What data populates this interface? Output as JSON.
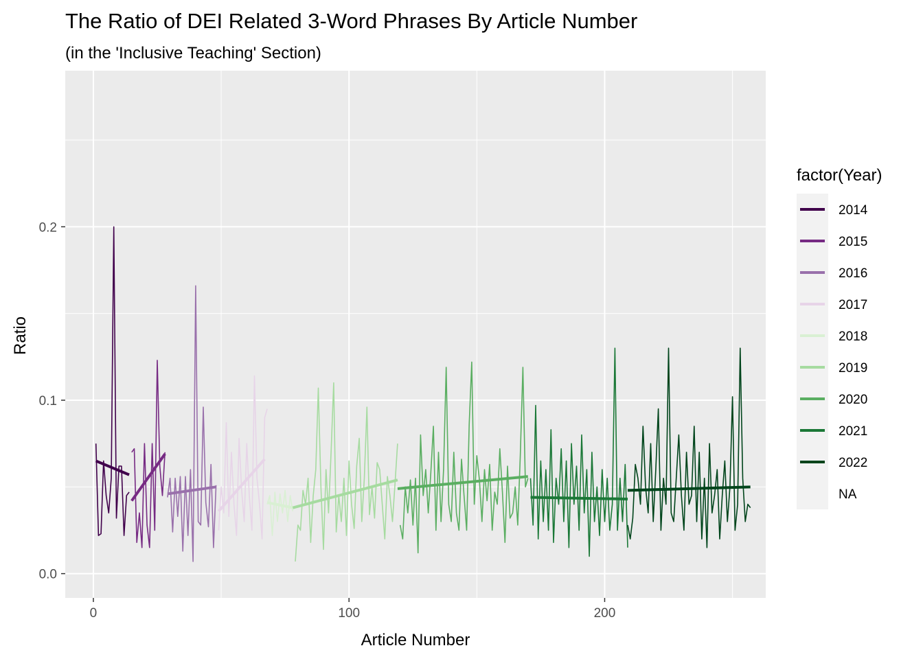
{
  "chart_data": {
    "type": "line",
    "title": "The Ratio of DEI Related 3-Word Phrases By Article Number",
    "subtitle": "(in the 'Inclusive Teaching' Section)",
    "xlabel": "Article Number",
    "ylabel": "Ratio",
    "xlim": [
      -11,
      263
    ],
    "ylim": [
      -0.014,
      0.29
    ],
    "x_ticks": [
      0,
      100,
      200
    ],
    "x_tick_labels": [
      "0",
      "100",
      "200"
    ],
    "y_ticks": [
      0.0,
      0.1,
      0.2
    ],
    "y_tick_labels": [
      "0.0",
      "0.1",
      "0.2"
    ],
    "grid": true,
    "panel_background": "#ebebeb",
    "legend": {
      "title": "factor(Year)",
      "placement": "right",
      "entries": [
        {
          "label": "2014",
          "color": "#40004b"
        },
        {
          "label": "2015",
          "color": "#762a83"
        },
        {
          "label": "2016",
          "color": "#9970ab"
        },
        {
          "label": "2017",
          "color": "#e7d4e8"
        },
        {
          "label": "2018",
          "color": "#d9f0d3"
        },
        {
          "label": "2019",
          "color": "#a6dba0"
        },
        {
          "label": "2020",
          "color": "#5aae61"
        },
        {
          "label": "2021",
          "color": "#1b7837"
        },
        {
          "label": "2022",
          "color": "#00441b"
        },
        {
          "label": "NA",
          "color": null
        }
      ]
    },
    "series": [
      {
        "name": "2014",
        "color": "#40004b",
        "x": [
          1,
          2,
          3,
          4,
          5,
          6,
          7,
          8,
          9,
          10,
          11,
          12,
          13,
          14
        ],
        "y": [
          0.075,
          0.022,
          0.023,
          0.065,
          0.045,
          0.035,
          0.055,
          0.2,
          0.032,
          0.062,
          0.062,
          0.022,
          0.045,
          0.047
        ],
        "trend": [
          [
            1,
            0.065
          ],
          [
            14,
            0.057
          ]
        ]
      },
      {
        "name": "2015",
        "color": "#762a83",
        "x": [
          15,
          16,
          17,
          18,
          19,
          20,
          21,
          22,
          23,
          24,
          25,
          26,
          27,
          28
        ],
        "y": [
          0.07,
          0.072,
          0.018,
          0.035,
          0.015,
          0.075,
          0.028,
          0.015,
          0.075,
          0.025,
          0.123,
          0.062,
          0.045,
          0.07
        ],
        "trend": [
          [
            15,
            0.042
          ],
          [
            28,
            0.069
          ]
        ]
      },
      {
        "name": "2016",
        "color": "#9970ab",
        "x": [
          29,
          30,
          31,
          32,
          33,
          34,
          35,
          36,
          37,
          38,
          39,
          40,
          41,
          42,
          43,
          44,
          45,
          46,
          47,
          48
        ],
        "y": [
          0.044,
          0.055,
          0.024,
          0.055,
          0.033,
          0.056,
          0.013,
          0.056,
          0.022,
          0.06,
          0.007,
          0.166,
          0.03,
          0.028,
          0.096,
          0.041,
          0.027,
          0.063,
          0.015,
          0.051
        ],
        "trend": [
          [
            29,
            0.046
          ],
          [
            48,
            0.05
          ]
        ]
      },
      {
        "name": "2017",
        "color": "#e7d4e8",
        "x": [
          49,
          50,
          51,
          52,
          53,
          54,
          55,
          56,
          57,
          58,
          59,
          60,
          61,
          62,
          63,
          64,
          65,
          66,
          67,
          68
        ],
        "y": [
          0.025,
          0.05,
          0.035,
          0.087,
          0.033,
          0.07,
          0.04,
          0.022,
          0.078,
          0.048,
          0.03,
          0.075,
          0.045,
          0.025,
          0.114,
          0.055,
          0.04,
          0.02,
          0.09,
          0.095
        ],
        "trend": [
          [
            49,
            0.036
          ],
          [
            67,
            0.066
          ]
        ]
      },
      {
        "name": "2018",
        "color": "#d9f0d3",
        "x": [
          68,
          69,
          70,
          71,
          72,
          73,
          74,
          75,
          76,
          77,
          78
        ],
        "y": [
          0.04,
          0.045,
          0.022,
          0.047,
          0.03,
          0.046,
          0.035,
          0.048,
          0.03,
          0.045,
          0.036
        ],
        "trend": [
          [
            68,
            0.041
          ],
          [
            78,
            0.038
          ]
        ]
      },
      {
        "name": "2019",
        "color": "#a6dba0",
        "x": [
          79,
          80,
          81,
          82,
          83,
          84,
          85,
          86,
          87,
          88,
          89,
          90,
          91,
          92,
          93,
          94,
          95,
          96,
          97,
          98,
          99,
          100,
          101,
          102,
          103,
          104,
          105,
          106,
          107,
          108,
          109,
          110,
          111,
          112,
          113,
          114,
          115,
          116,
          117,
          118,
          119
        ],
        "y": [
          0.007,
          0.028,
          0.025,
          0.048,
          0.04,
          0.055,
          0.018,
          0.045,
          0.06,
          0.107,
          0.05,
          0.014,
          0.06,
          0.035,
          0.071,
          0.11,
          0.024,
          0.045,
          0.03,
          0.055,
          0.022,
          0.065,
          0.04,
          0.026,
          0.062,
          0.078,
          0.03,
          0.055,
          0.096,
          0.034,
          0.05,
          0.032,
          0.064,
          0.06,
          0.04,
          0.02,
          0.056,
          0.045,
          0.03,
          0.052,
          0.075
        ],
        "trend": [
          [
            78,
            0.038
          ],
          [
            119,
            0.054
          ]
        ]
      },
      {
        "name": "2020",
        "color": "#5aae61",
        "x": [
          120,
          121,
          122,
          123,
          124,
          125,
          126,
          127,
          128,
          129,
          130,
          131,
          132,
          133,
          134,
          135,
          136,
          137,
          138,
          139,
          140,
          141,
          142,
          143,
          144,
          145,
          146,
          147,
          148,
          149,
          150,
          151,
          152,
          153,
          154,
          155,
          156,
          157,
          158,
          159,
          160,
          161,
          162,
          163,
          164,
          165,
          166,
          167,
          168,
          169,
          170
        ],
        "y": [
          0.028,
          0.02,
          0.05,
          0.035,
          0.054,
          0.028,
          0.055,
          0.012,
          0.08,
          0.045,
          0.06,
          0.035,
          0.058,
          0.085,
          0.025,
          0.07,
          0.03,
          0.06,
          0.119,
          0.04,
          0.03,
          0.07,
          0.035,
          0.025,
          0.066,
          0.045,
          0.025,
          0.086,
          0.122,
          0.04,
          0.068,
          0.054,
          0.03,
          0.06,
          0.042,
          0.063,
          0.025,
          0.047,
          0.04,
          0.072,
          0.047,
          0.018,
          0.062,
          0.032,
          0.035,
          0.05,
          0.028,
          0.068,
          0.119,
          0.05,
          0.055
        ],
        "trend": [
          [
            119,
            0.049
          ],
          [
            170,
            0.056
          ]
        ]
      },
      {
        "name": "2021",
        "color": "#1b7837",
        "x": [
          171,
          172,
          173,
          174,
          175,
          176,
          177,
          178,
          179,
          180,
          181,
          182,
          183,
          184,
          185,
          186,
          187,
          188,
          189,
          190,
          191,
          192,
          193,
          194,
          195,
          196,
          197,
          198,
          199,
          200,
          201,
          202,
          203,
          204,
          205,
          206,
          207,
          208,
          209
        ],
        "y": [
          0.055,
          0.028,
          0.097,
          0.02,
          0.065,
          0.03,
          0.06,
          0.025,
          0.083,
          0.018,
          0.055,
          0.04,
          0.072,
          0.03,
          0.065,
          0.015,
          0.075,
          0.04,
          0.062,
          0.025,
          0.08,
          0.035,
          0.06,
          0.01,
          0.07,
          0.03,
          0.05,
          0.022,
          0.06,
          0.03,
          0.055,
          0.025,
          0.04,
          0.13,
          0.025,
          0.055,
          0.03,
          0.063,
          0.015
        ],
        "trend": [
          [
            171,
            0.044
          ],
          [
            209,
            0.043
          ]
        ]
      },
      {
        "name": "2022",
        "color": "#00441b",
        "x": [
          209,
          210,
          211,
          212,
          213,
          214,
          215,
          216,
          217,
          218,
          219,
          220,
          221,
          222,
          223,
          224,
          225,
          226,
          227,
          228,
          229,
          230,
          231,
          232,
          233,
          234,
          235,
          236,
          237,
          238,
          239,
          240,
          241,
          242,
          243,
          244,
          245,
          246,
          247,
          248,
          249,
          250,
          251,
          252,
          253,
          254,
          255,
          256,
          257
        ],
        "y": [
          0.028,
          0.02,
          0.032,
          0.063,
          0.055,
          0.04,
          0.085,
          0.05,
          0.035,
          0.075,
          0.03,
          0.06,
          0.095,
          0.025,
          0.055,
          0.04,
          0.13,
          0.035,
          0.03,
          0.055,
          0.08,
          0.045,
          0.025,
          0.07,
          0.04,
          0.045,
          0.085,
          0.03,
          0.07,
          0.02,
          0.055,
          0.015,
          0.075,
          0.035,
          0.045,
          0.06,
          0.02,
          0.045,
          0.065,
          0.03,
          0.05,
          0.102,
          0.025,
          0.04,
          0.13,
          0.055,
          0.03,
          0.04,
          0.038
        ],
        "trend": [
          [
            209,
            0.048
          ],
          [
            257,
            0.05
          ]
        ]
      }
    ]
  }
}
